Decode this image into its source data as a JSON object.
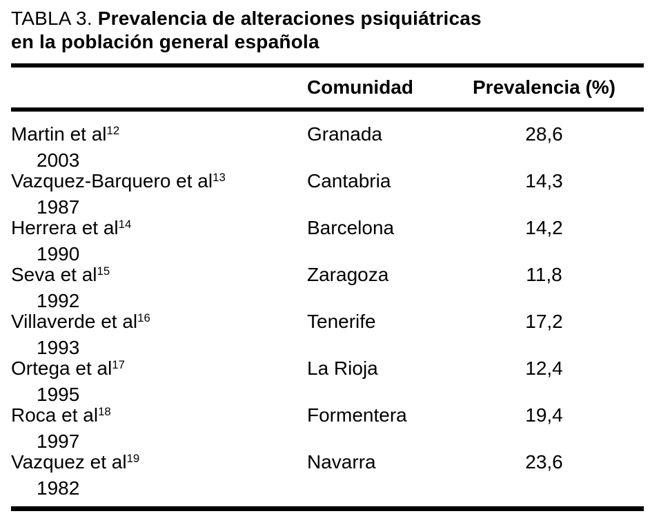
{
  "title": {
    "prefix": "TABLA 3.",
    "line1_bold": "Prevalencia de alteraciones psiquiátricas",
    "line2_bold": "en la población general española"
  },
  "table": {
    "headers": [
      "Comunidad",
      "Prevalencia (%)"
    ],
    "rows": [
      {
        "author": "Martin et al",
        "ref": "12",
        "year": "2003",
        "community": "Granada",
        "prevalence": "28,6"
      },
      {
        "author": "Vazquez-Barquero et al",
        "ref": "13",
        "year": "1987",
        "community": "Cantabria",
        "prevalence": "14,3"
      },
      {
        "author": "Herrera et al",
        "ref": "14",
        "year": "1990",
        "community": "Barcelona",
        "prevalence": "14,2"
      },
      {
        "author": "Seva et al",
        "ref": "15",
        "year": "1992",
        "community": "Zaragoza",
        "prevalence": "11,8"
      },
      {
        "author": "Villaverde et al",
        "ref": "16",
        "year": "1993",
        "community": "Tenerife",
        "prevalence": "17,2"
      },
      {
        "author": "Ortega et al",
        "ref": "17",
        "year": "1995",
        "community": "La Rioja",
        "prevalence": "12,4"
      },
      {
        "author": "Roca et al",
        "ref": "18",
        "year": "1997",
        "community": "Formentera",
        "prevalence": "19,4"
      },
      {
        "author": "Vazquez et al",
        "ref": "19",
        "year": "1982",
        "community": "Navarra",
        "prevalence": "23,6"
      }
    ]
  },
  "colors": {
    "text": "#000000",
    "background": "#ffffff",
    "rule": "#000000"
  }
}
